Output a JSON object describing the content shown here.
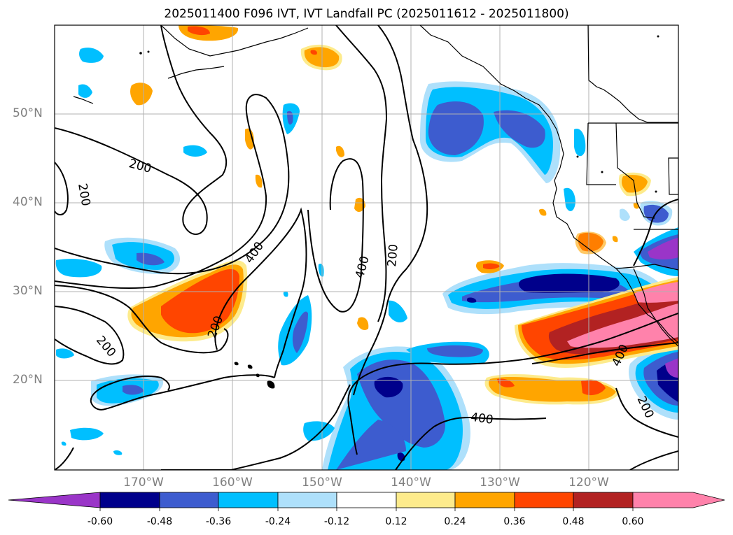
{
  "title": "2025011400 F096 IVT, IVT Landfall PC (2025011612 - 2025011800)",
  "map": {
    "region": "North-East Pacific Ocean and western North America",
    "lat_labels": [
      "50°N",
      "40°N",
      "30°N",
      "20°N"
    ],
    "lon_labels": [
      "170°W",
      "160°W",
      "150°W",
      "140°W",
      "130°W",
      "120°W"
    ],
    "contour_labels": [
      "200",
      "200",
      "400",
      "200",
      "200",
      "400",
      "200",
      "400",
      "400",
      "200"
    ]
  },
  "colorbar": {
    "ticks": [
      "-0.60",
      "-0.48",
      "-0.36",
      "-0.24",
      "-0.12",
      "0.12",
      "0.24",
      "0.36",
      "0.48",
      "0.60"
    ],
    "colors": [
      "#9a35c8",
      "#00008b",
      "#3d5ccf",
      "#00bfff",
      "#aee0fb",
      "#ffffff",
      "#fdeb8c",
      "#ffa500",
      "#ff4500",
      "#b22222",
      "#ff82ab"
    ]
  },
  "colors": {
    "purple": "#9a35c8",
    "navy": "#00008b",
    "royal": "#3d5ccf",
    "sky": "#00bfff",
    "pale_blue": "#aee0fb",
    "yellow": "#fdeb8c",
    "orange": "#ffa500",
    "red_orange": "#ff4500",
    "firebrick": "#b22222",
    "pink": "#ff82ab"
  }
}
